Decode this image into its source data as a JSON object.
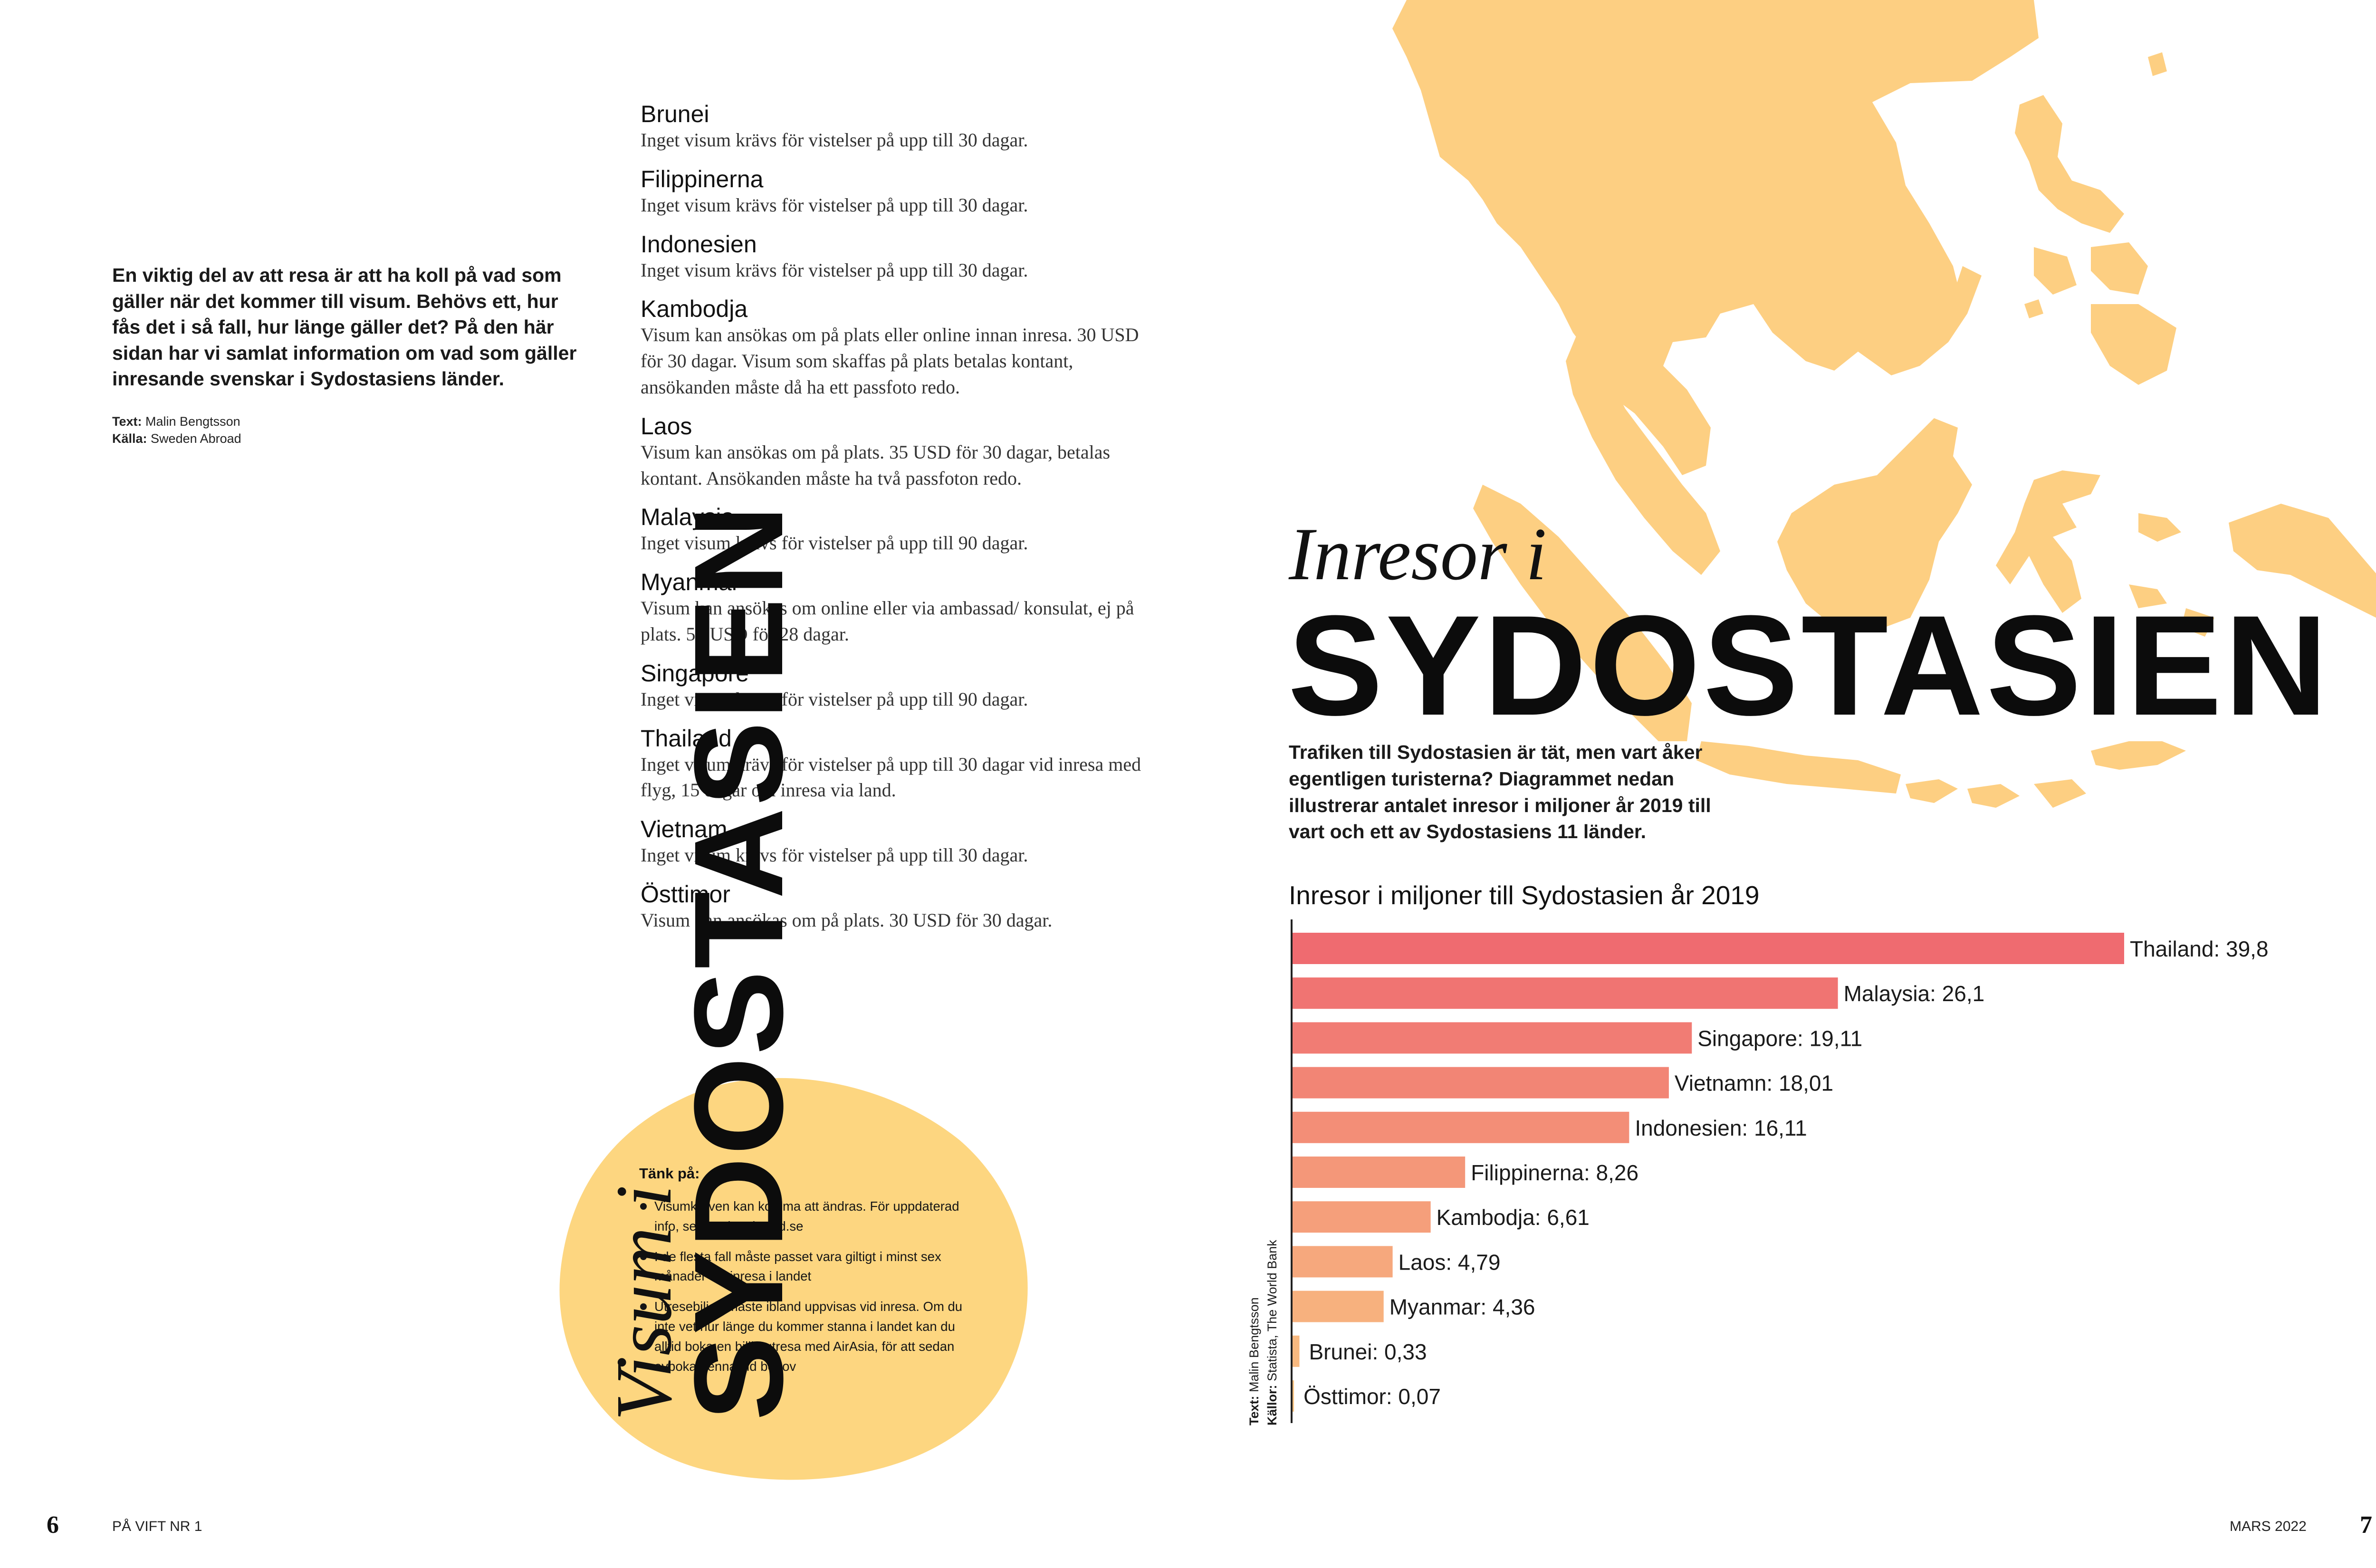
{
  "left_page": {
    "intro": "En viktig del av att resa är att ha koll på vad som gäller när det kommer till visum. Behövs ett, hur fås det i så fall, hur länge gäller det? På den här sidan har vi samlat information om vad som gäller inresande svenskar i Sydostasiens länder.",
    "credits": {
      "text_label": "Text:",
      "text_value": "Malin Bengtsson",
      "source_label": "Källa:",
      "source_value": "Sweden Abroad"
    },
    "vertical_title_small": "Visum i",
    "vertical_title_big": "SYDOSTASIEN",
    "countries": [
      {
        "name": "Brunei",
        "text": "Inget visum krävs för vistelser på upp till 30 dagar."
      },
      {
        "name": "Filippinerna",
        "text": "Inget visum krävs för vistelser på upp till 30 dagar."
      },
      {
        "name": "Indonesien",
        "text": "Inget visum krävs för vistelser på upp till 30 dagar."
      },
      {
        "name": "Kambodja",
        "text": "Visum kan ansökas om på plats eller online innan inresa. 30 USD för 30 dagar. Visum som skaffas på plats betalas kontant, ansökanden måste då ha ett passfoto redo."
      },
      {
        "name": "Laos",
        "text": "Visum kan ansökas om på plats. 35 USD för 30 dagar, betalas kontant. Ansökanden måste ha två passfoton redo."
      },
      {
        "name": "Malaysia",
        "text": "Inget visum krävs för vistelser på upp till 90 dagar."
      },
      {
        "name": "Myanmar",
        "text": "Visum kan ansökas om online eller via ambassad/ konsulat, ej på plats. 50 USD för 28 dagar."
      },
      {
        "name": "Singapore",
        "text": "Inget visum krävs för vistelser på upp till 90 dagar."
      },
      {
        "name": "Thailand",
        "text": "Inget visum krävs för vistelser på upp till 30 dagar vid inresa med flyg, 15 dagar om inresa via land."
      },
      {
        "name": "Vietnam",
        "text": "Inget visum krävs för vistelser på upp till 30 dagar."
      },
      {
        "name": "Östtimor",
        "text": "Visum kan ansökas om på plats. 30 USD för 30 dagar."
      }
    ],
    "tank_pa": {
      "title": "Tänk på:",
      "items": [
        "Visumkraven kan komma att ändras. För uppdaterad info, se swedenabroad.se",
        "I de flesta fall måste passet vara giltigt i minst sex månader vid inresa i landet",
        "Utresebiljett måste ibland uppvisas vid inresa. Om du inte vet hur länge du kommer stanna i landet kan du alltid boka en billig utresa med AirAsia, för att sedan avboka denna vid behov"
      ]
    },
    "folio_number": "6",
    "folio_title": "PÅ VIFT NR 1"
  },
  "right_page": {
    "title_small": "Inresor i",
    "title_big": "SYDOSTASIEN",
    "intro": "Trafiken till Sydostasien är tät, men vart åker egentligen turisterna? Diagrammet nedan illustrerar antalet inresor i miljoner år 2019 till vart och ett av Sydostasiens 11 länder.",
    "credit": {
      "text_label": "Text:",
      "text_value": "Malin Bengtsson",
      "source_label": "Källor:",
      "source_value": "Statista, The World Bank"
    },
    "folio_date": "MARS 2022",
    "folio_number": "7"
  },
  "colors": {
    "map": "#fdcf82",
    "blob": "#fdd680",
    "bar_high": "#ef6b70",
    "bar_low": "#f9c282"
  },
  "chart_data": {
    "type": "bar",
    "orientation": "horizontal",
    "title": "Inresor i miljoner till Sydostasien år 2019",
    "categories": [
      "Thailand",
      "Malaysia",
      "Singapore",
      "Vietnamn",
      "Indonesien",
      "Filippinerna",
      "Kambodja",
      "Laos",
      "Myanmar",
      "Brunei",
      "Östtimor"
    ],
    "values": [
      39.8,
      26.1,
      19.11,
      18.01,
      16.11,
      8.26,
      6.61,
      4.79,
      4.36,
      0.33,
      0.07
    ],
    "labels": [
      "Thailand: 39,8",
      "Malaysia: 26,1",
      "Singapore: 19,11",
      "Vietnamn: 18,01",
      "Indonesien: 16,11",
      "Filippinerna: 8,26",
      "Kambodja: 6,61",
      "Laos: 4,79",
      "Myanmar: 4,36",
      "Brunei: 0,33",
      "Östtimor: 0,07"
    ],
    "xlim": [
      0,
      39.8
    ],
    "grid": false,
    "legend": "none"
  }
}
